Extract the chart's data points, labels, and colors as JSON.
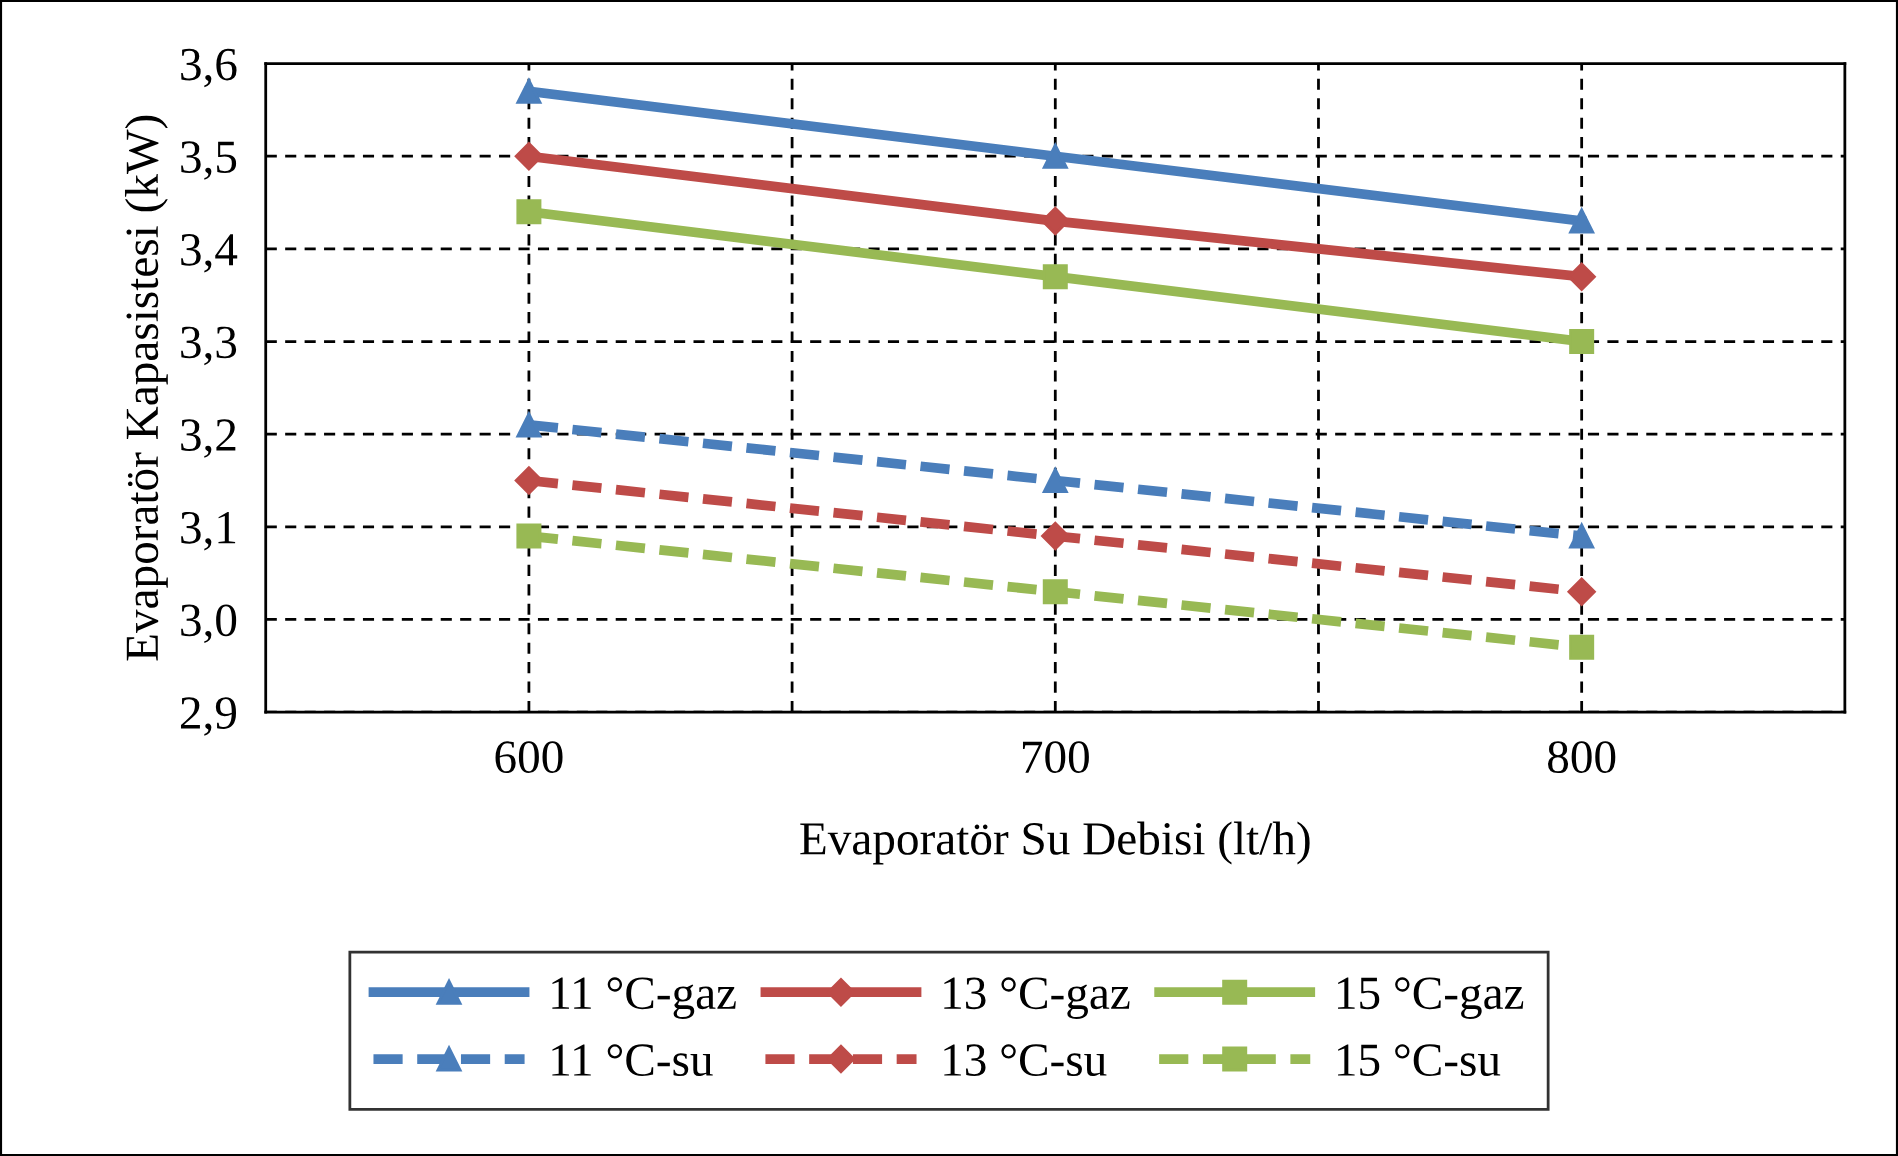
{
  "chart_data": {
    "type": "line",
    "xlabel": "Evaporatör Su Debisi (lt/h)",
    "ylabel": "Evaporatör Kapasistesi (kW)",
    "x": [
      600,
      700,
      800
    ],
    "series": [
      {
        "name": "11 °C-gaz",
        "color": "#4a7ebb",
        "values": [
          3.57,
          3.5,
          3.43
        ],
        "marker": "triangle",
        "line_style": "solid"
      },
      {
        "name": "13 °C-gaz",
        "color": "#be4b48",
        "values": [
          3.5,
          3.43,
          3.37
        ],
        "marker": "diamond",
        "line_style": "solid"
      },
      {
        "name": "15 °C-gaz",
        "color": "#98b954",
        "values": [
          3.44,
          3.37,
          3.3
        ],
        "marker": "square",
        "line_style": "solid"
      },
      {
        "name": "11 °C-su",
        "color": "#4a7ebb",
        "values": [
          3.21,
          3.15,
          3.09
        ],
        "marker": "triangle",
        "line_style": "dashed"
      },
      {
        "name": "13 °C-su",
        "color": "#be4b48",
        "values": [
          3.15,
          3.09,
          3.03
        ],
        "marker": "diamond",
        "line_style": "dashed"
      },
      {
        "name": "15 °C-su",
        "color": "#98b954",
        "values": [
          3.09,
          3.03,
          2.97
        ],
        "marker": "square",
        "line_style": "dashed"
      }
    ],
    "xlim": [
      550,
      850
    ],
    "xticks": [
      600,
      {
        "value": 650,
        "label": null
      },
      700,
      {
        "value": 750,
        "label": null
      },
      800
    ],
    "ylim": [
      2.9,
      3.6
    ],
    "yticks": [
      {
        "value": 2.9,
        "label": "2,9"
      },
      {
        "value": 3.0,
        "label": "3,0"
      },
      {
        "value": 3.1,
        "label": "3,1"
      },
      {
        "value": 3.2,
        "label": "3,2"
      },
      {
        "value": 3.3,
        "label": "3,3"
      },
      {
        "value": 3.4,
        "label": "3,4"
      },
      {
        "value": 3.5,
        "label": "3,5"
      },
      {
        "value": 3.6,
        "label": "3,6"
      }
    ],
    "grid": true,
    "legend": "bottom"
  }
}
